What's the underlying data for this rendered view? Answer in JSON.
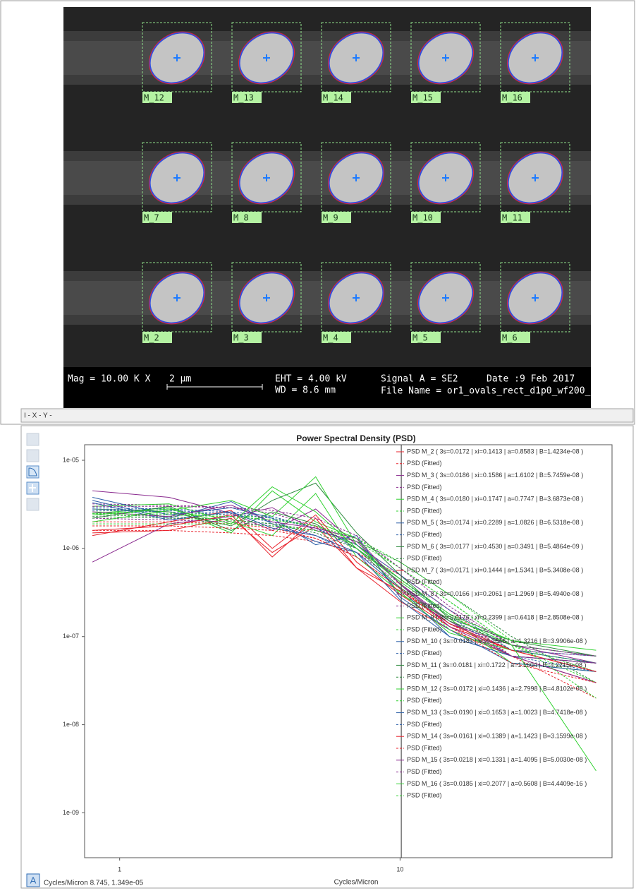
{
  "sem_image": {
    "particle_labels": [
      [
        "M_12",
        "M_13",
        "M_14",
        "M_15",
        "M_16"
      ],
      [
        "M_7",
        "M_8",
        "M_9",
        "M_10",
        "M_11"
      ],
      [
        "M_2",
        "M_3",
        "M_4",
        "M_5",
        "M_6"
      ]
    ],
    "info": {
      "mag": "Mag =  10.00 K X",
      "scale": "2 µm",
      "eht": "EHT =  4.00 kV",
      "wd": "WD =  8.6 mm",
      "signal": "Signal A = SE2",
      "date": "Date :9 Feb 2017",
      "file": "File Name = or1_ovals_rect_d1p0_wf200_"
    }
  },
  "status_bar": "I - X - Y -",
  "footer_status": "Cycles/Micron 8.745,  1.349e-05",
  "chart_data": {
    "type": "line",
    "title": "Power Spectral Density (PSD)",
    "x_label": "Cycles/Micron",
    "log_x": true,
    "log_y": true,
    "xlim": [
      0.75,
      57
    ],
    "ylim": [
      3.1e-10,
      1.5e-05
    ],
    "xticks": [
      1,
      10
    ],
    "yticks": [
      {
        "value": 1e-09,
        "label": "1e-09"
      },
      {
        "value": 1e-08,
        "label": "1e-08"
      },
      {
        "value": 1e-07,
        "label": "1e-07"
      },
      {
        "value": 1e-06,
        "label": "1e-06"
      },
      {
        "value": 1e-05,
        "label": "1e-05"
      }
    ],
    "cursor_x": 10.1,
    "x": [
      0.8,
      1.5,
      2.5,
      3.5,
      5,
      7,
      10,
      15,
      25,
      50
    ],
    "series": [
      {
        "name": "PSD M_2 ( 3s=0.0172 | xi=0.1413 | a=0.8583 | B=1.4234e-08 )",
        "color": "#e8212b",
        "dash": false,
        "values": [
          1.5e-06,
          1.6e-06,
          2.2e-06,
          9e-07,
          1.8e-06,
          6e-07,
          2.5e-07,
          1.2e-07,
          6e-08,
          3e-08
        ]
      },
      {
        "name": "PSD (Fitted)",
        "color": "#e8212b",
        "dash": true,
        "values": [
          1.6e-06,
          1.6e-06,
          1.5e-06,
          1.4e-06,
          1.2e-06,
          9e-07,
          5e-07,
          2e-07,
          6e-08,
          2e-08
        ]
      },
      {
        "name": "PSD M_3 ( 3s=0.0186 | xi=0.1586 | a=1.6102 | B=5.7459e-08 )",
        "color": "#8a2b8f",
        "dash": false,
        "values": [
          4.5e-06,
          3.8e-06,
          2.5e-06,
          1.6e-06,
          2.8e-06,
          1.1e-06,
          4e-07,
          1.4e-07,
          8e-08,
          5e-08
        ]
      },
      {
        "name": "PSD (Fitted)",
        "color": "#8a2b8f",
        "dash": true,
        "values": [
          3.2e-06,
          3.1e-06,
          2.9e-06,
          2.5e-06,
          1.8e-06,
          1.1e-06,
          5e-07,
          2e-07,
          8e-08,
          6e-08
        ]
      },
      {
        "name": "PSD M_4 ( 3s=0.0180 | xi=0.1747 | a=0.7747 | B=3.6873e-08 )",
        "color": "#2fd12f",
        "dash": false,
        "values": [
          2.5e-06,
          2.9e-06,
          1.5e-06,
          4.5e-06,
          2e-06,
          1.3e-06,
          3e-07,
          1.6e-07,
          5e-08,
          4e-08
        ]
      },
      {
        "name": "PSD (Fitted)",
        "color": "#2fd12f",
        "dash": true,
        "values": [
          2.6e-06,
          2.5e-06,
          2.4e-06,
          2.2e-06,
          1.8e-06,
          1.2e-06,
          6e-07,
          2.5e-07,
          8e-08,
          4e-08
        ]
      },
      {
        "name": "PSD M_5 ( 3s=0.0174 | xi=0.2289 | a=1.0826 | B=6.5318e-08 )",
        "color": "#2b5fa8",
        "dash": false,
        "values": [
          3.5e-06,
          2.2e-06,
          3.4e-06,
          1.9e-06,
          1.2e-06,
          9e-07,
          3.5e-07,
          1e-07,
          6e-08,
          5e-08
        ]
      },
      {
        "name": "PSD (Fitted)",
        "color": "#2b5fa8",
        "dash": true,
        "values": [
          2.7e-06,
          2.6e-06,
          2.4e-06,
          2e-06,
          1.4e-06,
          8e-07,
          3.5e-07,
          1.4e-07,
          7e-08,
          6e-08
        ]
      },
      {
        "name": "PSD M_6 ( 3s=0.0177 | xi=0.4530 | a=0.3491 | B=5.4864e-09 )",
        "color": "#2d8a3e",
        "dash": false,
        "values": [
          2.8e-06,
          2.6e-06,
          1.8e-06,
          3.5e-06,
          5.5e-06,
          1.5e-06,
          5e-07,
          1.6e-07,
          9e-08,
          6e-08
        ]
      },
      {
        "name": "PSD (Fitted)",
        "color": "#2d8a3e",
        "dash": true,
        "values": [
          2.4e-06,
          2.3e-06,
          2.1e-06,
          1.9e-06,
          1.6e-06,
          1.2e-06,
          7e-07,
          3e-07,
          1e-07,
          3e-08
        ]
      },
      {
        "name": "PSD M_7 ( 3s=0.0171 | xi=0.1444 | a=1.5341 | B=5.3408e-08 )",
        "color": "#e8212b",
        "dash": false,
        "values": [
          1.4e-06,
          2e-06,
          2.7e-06,
          1e-06,
          2.4e-06,
          7e-07,
          3e-07,
          1.3e-07,
          7e-08,
          4e-08
        ]
      },
      {
        "name": "PSD (Fitted)",
        "color": "#e8212b",
        "dash": true,
        "values": [
          2e-06,
          2e-06,
          1.9e-06,
          1.7e-06,
          1.3e-06,
          8e-07,
          3.5e-07,
          1.4e-07,
          6e-08,
          5e-08
        ]
      },
      {
        "name": "PSD M_8 ( 3s=0.0166 | xi=0.2061 | a=1.2969 | B=5.4940e-08 )",
        "color": "#8a2b8f",
        "dash": false,
        "values": [
          7e-07,
          1.9e-06,
          2.3e-06,
          2.9e-06,
          1.6e-06,
          1.2e-06,
          4e-07,
          1.5e-07,
          6e-08,
          3e-08
        ]
      },
      {
        "name": "PSD (Fitted)",
        "color": "#8a2b8f",
        "dash": true,
        "values": [
          2.2e-06,
          2.1e-06,
          2e-06,
          1.8e-06,
          1.4e-06,
          9e-07,
          4e-07,
          1.5e-07,
          7e-08,
          6e-08
        ]
      },
      {
        "name": "PSD M_9 ( 3s=0.0176 | xi=0.2399 | a=0.6418 | B=2.8508e-08 )",
        "color": "#2fd12f",
        "dash": false,
        "values": [
          3e-06,
          3.2e-06,
          2e-06,
          1.4e-06,
          4.2e-06,
          8e-07,
          3.2e-07,
          1.1e-07,
          7e-08,
          5e-08
        ]
      },
      {
        "name": "PSD (Fitted)",
        "color": "#2fd12f",
        "dash": true,
        "values": [
          2.5e-06,
          2.4e-06,
          2.3e-06,
          2.1e-06,
          1.8e-06,
          1.3e-06,
          6e-07,
          2.5e-07,
          8e-08,
          3e-08
        ]
      },
      {
        "name": "PSD M_10 ( 3s=0.0183 | xi=0.1546 | a=1.3216 | B=3.9906e-08 )",
        "color": "#2b5fa8",
        "dash": false,
        "values": [
          3.8e-06,
          2.4e-06,
          2.9e-06,
          2.2e-06,
          1.1e-06,
          1.4e-06,
          2.8e-07,
          1.2e-07,
          5e-08,
          4e-08
        ]
      },
      {
        "name": "PSD (Fitted)",
        "color": "#2b5fa8",
        "dash": true,
        "values": [
          2.9e-06,
          2.8e-06,
          2.6e-06,
          2.3e-06,
          1.7e-06,
          1e-06,
          4.5e-07,
          1.7e-07,
          6e-08,
          4e-08
        ]
      },
      {
        "name": "PSD M_11 ( 3s=0.0181 | xi=0.1722 | a=1.1604 | B=4.2215e-08 )",
        "color": "#2d8a3e",
        "dash": false,
        "values": [
          2.2e-06,
          3e-06,
          1.6e-06,
          2.6e-06,
          1.9e-06,
          1e-06,
          3.6e-07,
          1.5e-07,
          8e-08,
          6e-08
        ]
      },
      {
        "name": "PSD (Fitted)",
        "color": "#2d8a3e",
        "dash": true,
        "values": [
          2.3e-06,
          2.2e-06,
          2.1e-06,
          1.9e-06,
          1.5e-06,
          1e-06,
          4.5e-07,
          1.8e-07,
          7e-08,
          5e-08
        ]
      },
      {
        "name": "PSD M_12 ( 3s=0.0172 | xi=0.1436 | a=2.7998 | B=4.8102e-08 )",
        "color": "#2fd12f",
        "dash": false,
        "values": [
          2e-06,
          2.7e-06,
          3.5e-06,
          2.3e-06,
          6.5e-06,
          1.1e-06,
          4.5e-07,
          1.8e-07,
          9e-08,
          7e-08
        ]
      },
      {
        "name": "PSD (Fitted)",
        "color": "#2fd12f",
        "dash": true,
        "values": [
          1.9e-06,
          1.9e-06,
          1.9e-06,
          1.8e-06,
          1.6e-06,
          1.1e-06,
          4e-07,
          1.2e-07,
          6e-08,
          5e-08
        ]
      },
      {
        "name": "PSD M_13 ( 3s=0.0190 | xi=0.1653 | a=1.0023 | B=4.7418e-08 )",
        "color": "#2b5fa8",
        "dash": false,
        "values": [
          3.3e-06,
          2.1e-06,
          2.6e-06,
          1.7e-06,
          1.4e-06,
          9e-07,
          2.6e-07,
          1e-07,
          6e-08,
          5e-08
        ]
      },
      {
        "name": "PSD (Fitted)",
        "color": "#2b5fa8",
        "dash": true,
        "values": [
          2.8e-06,
          2.7e-06,
          2.5e-06,
          2.2e-06,
          1.7e-06,
          1.1e-06,
          5e-07,
          2e-07,
          7e-08,
          5e-08
        ]
      },
      {
        "name": "PSD M_14 ( 3s=0.0161 | xi=0.1389 | a=1.1423 | B=3.1599e-08 )",
        "color": "#e8212b",
        "dash": false,
        "values": [
          1.6e-06,
          1.8e-06,
          2.4e-06,
          8e-07,
          2.2e-06,
          6e-07,
          3.3e-07,
          1.4e-07,
          7e-08,
          4e-08
        ]
      },
      {
        "name": "PSD (Fitted)",
        "color": "#e8212b",
        "dash": true,
        "values": [
          1.8e-06,
          1.8e-06,
          1.7e-06,
          1.6e-06,
          1.3e-06,
          8e-07,
          3.5e-07,
          1.3e-07,
          5e-08,
          3e-08
        ]
      },
      {
        "name": "PSD M_15 ( 3s=0.0218 | xi=0.1331 | a=1.4095 | B=5.0030e-08 )",
        "color": "#8a2b8f",
        "dash": false,
        "values": [
          2.6e-06,
          2.3e-06,
          3.1e-06,
          2e-06,
          1.7e-06,
          1.3e-06,
          3.9e-07,
          1.3e-07,
          6e-08,
          5e-08
        ]
      },
      {
        "name": "PSD (Fitted)",
        "color": "#8a2b8f",
        "dash": true,
        "values": [
          3e-06,
          3e-06,
          2.9e-06,
          2.7e-06,
          2.2e-06,
          1.4e-06,
          6e-07,
          2.2e-07,
          8e-08,
          6e-08
        ]
      },
      {
        "name": "PSD M_16 ( 3s=0.0185 | xi=0.2077 | a=0.5608 | B=4.4409e-16 )",
        "color": "#2fd12f",
        "dash": false,
        "values": [
          2.4e-06,
          2.8e-06,
          1.9e-06,
          5e-06,
          2.6e-06,
          1e-06,
          4.2e-07,
          1.7e-07,
          8e-08,
          3e-09
        ]
      },
      {
        "name": "PSD (Fitted)",
        "color": "#2fd12f",
        "dash": true,
        "values": [
          2.5e-06,
          2.4e-06,
          2.3e-06,
          2.1e-06,
          1.8e-06,
          1.3e-06,
          7e-07,
          3e-07,
          9e-08,
          2e-08
        ]
      }
    ]
  }
}
